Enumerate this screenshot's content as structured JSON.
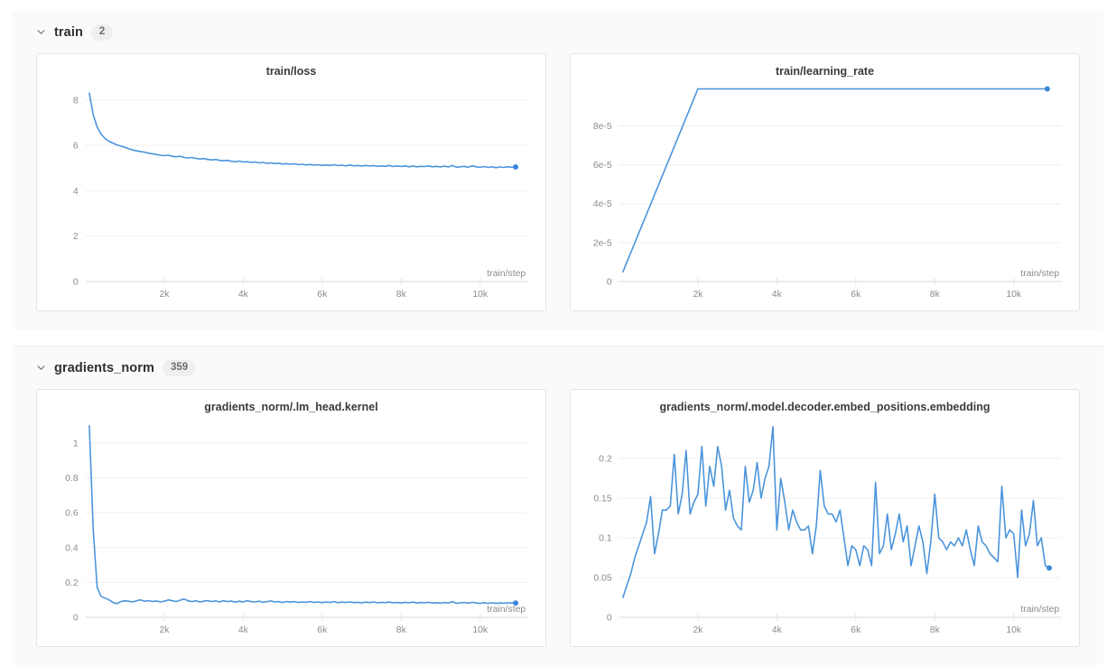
{
  "sections": [
    {
      "name": "train",
      "count": "2"
    },
    {
      "name": "gradients_norm",
      "count": "359"
    }
  ],
  "colors": {
    "line_blue": "#4a94db",
    "end_dot_blue": "#3b87d9",
    "grid_line": "#efefef",
    "axis_line": "#d9d9d9"
  },
  "chart_data": [
    {
      "type": "line",
      "title": "train/loss",
      "xlabel": "train/step",
      "line_color": "#4a94db",
      "end_dot": true,
      "grid": true,
      "legend": "none",
      "xlim": [
        0,
        11200
      ],
      "ylim": [
        0,
        8.75
      ],
      "xtick_values": [
        2000,
        4000,
        6000,
        8000,
        10000
      ],
      "xtick_labels": [
        "2k",
        "4k",
        "6k",
        "8k",
        "10k"
      ],
      "ytick_values": [
        0,
        2,
        4,
        6,
        8
      ],
      "ytick_labels": [
        "0",
        "2",
        "4",
        "6",
        "8"
      ],
      "x_start": 100,
      "x_step": 100,
      "y": [
        8.3,
        7.35,
        6.8,
        6.5,
        6.3,
        6.18,
        6.1,
        6.02,
        5.97,
        5.92,
        5.85,
        5.8,
        5.76,
        5.73,
        5.7,
        5.66,
        5.63,
        5.6,
        5.57,
        5.55,
        5.57,
        5.52,
        5.5,
        5.52,
        5.47,
        5.45,
        5.47,
        5.43,
        5.4,
        5.42,
        5.38,
        5.36,
        5.38,
        5.34,
        5.32,
        5.34,
        5.3,
        5.28,
        5.31,
        5.27,
        5.28,
        5.25,
        5.27,
        5.23,
        5.25,
        5.21,
        5.23,
        5.2,
        5.22,
        5.18,
        5.2,
        5.17,
        5.19,
        5.15,
        5.17,
        5.14,
        5.16,
        5.13,
        5.15,
        5.12,
        5.14,
        5.12,
        5.15,
        5.11,
        5.13,
        5.1,
        5.14,
        5.1,
        5.12,
        5.09,
        5.12,
        5.09,
        5.11,
        5.08,
        5.1,
        5.08,
        5.12,
        5.07,
        5.1,
        5.07,
        5.1,
        5.06,
        5.09,
        5.06,
        5.08,
        5.07,
        5.1,
        5.06,
        5.08,
        5.05,
        5.09,
        5.05,
        5.12,
        5.04,
        5.06,
        5.08,
        5.04,
        5.1,
        5.06,
        5.03,
        5.07,
        5.03,
        5.06,
        5.02,
        5.05,
        5.03,
        5.06,
        5.04,
        5.05
      ]
    },
    {
      "type": "line",
      "title": "train/learning_rate",
      "xlabel": "train/step",
      "line_color": "#4a94db",
      "end_dot": true,
      "grid": true,
      "legend": "none",
      "xlim": [
        0,
        11200
      ],
      "ylim": [
        0,
        0.000102
      ],
      "xtick_values": [
        2000,
        4000,
        6000,
        8000,
        10000
      ],
      "xtick_labels": [
        "2k",
        "4k",
        "6k",
        "8k",
        "10k"
      ],
      "ytick_values": [
        0,
        2e-05,
        4e-05,
        6e-05,
        8e-05
      ],
      "ytick_labels": [
        "0",
        "2e-5",
        "4e-5",
        "6e-5",
        "8e-5"
      ],
      "x": [
        100,
        2000,
        10850
      ],
      "y": [
        5e-06,
        9.9e-05,
        9.9e-05
      ]
    },
    {
      "type": "line",
      "title": "gradients_norm/.lm_head.kernel",
      "xlabel": "train/step",
      "line_color": "#4a94db",
      "end_dot": true,
      "grid": true,
      "legend": "none",
      "xlim": [
        0,
        11200
      ],
      "ylim": [
        0,
        1.14
      ],
      "xtick_values": [
        2000,
        4000,
        6000,
        8000,
        10000
      ],
      "xtick_labels": [
        "2k",
        "4k",
        "6k",
        "8k",
        "10k"
      ],
      "ytick_values": [
        0,
        0.2,
        0.4,
        0.6,
        0.8,
        1
      ],
      "ytick_labels": [
        "0",
        "0.2",
        "0.4",
        "0.6",
        "0.8",
        "1"
      ],
      "x_start": 100,
      "x_step": 100,
      "y": [
        1.1,
        0.5,
        0.17,
        0.12,
        0.11,
        0.1,
        0.085,
        0.078,
        0.09,
        0.095,
        0.092,
        0.088,
        0.095,
        0.1,
        0.092,
        0.096,
        0.09,
        0.094,
        0.088,
        0.092,
        0.1,
        0.095,
        0.09,
        0.098,
        0.105,
        0.095,
        0.09,
        0.095,
        0.088,
        0.092,
        0.096,
        0.09,
        0.094,
        0.088,
        0.095,
        0.09,
        0.093,
        0.087,
        0.092,
        0.088,
        0.095,
        0.09,
        0.088,
        0.092,
        0.086,
        0.09,
        0.094,
        0.088,
        0.09,
        0.085,
        0.09,
        0.087,
        0.09,
        0.085,
        0.088,
        0.086,
        0.09,
        0.085,
        0.088,
        0.084,
        0.088,
        0.085,
        0.09,
        0.084,
        0.087,
        0.085,
        0.088,
        0.084,
        0.086,
        0.083,
        0.087,
        0.084,
        0.088,
        0.083,
        0.086,
        0.084,
        0.087,
        0.083,
        0.085,
        0.082,
        0.086,
        0.083,
        0.087,
        0.082,
        0.085,
        0.083,
        0.086,
        0.082,
        0.084,
        0.081,
        0.085,
        0.082,
        0.09,
        0.08,
        0.083,
        0.085,
        0.081,
        0.086,
        0.082,
        0.08,
        0.084,
        0.08,
        0.083,
        0.08,
        0.082,
        0.081,
        0.083,
        0.082,
        0.082
      ]
    },
    {
      "type": "line",
      "title": "gradients_norm/.model.decoder.embed_positions.embedding",
      "xlabel": "train/step",
      "line_color": "#4a94db",
      "end_dot": true,
      "grid": true,
      "legend": "none",
      "xlim": [
        0,
        11200
      ],
      "ylim": [
        0,
        0.25
      ],
      "xtick_values": [
        2000,
        4000,
        6000,
        8000,
        10000
      ],
      "xtick_labels": [
        "2k",
        "4k",
        "6k",
        "8k",
        "10k"
      ],
      "ytick_values": [
        0,
        0.05,
        0.1,
        0.15,
        0.2
      ],
      "ytick_labels": [
        "0",
        "0.05",
        "0.1",
        "0.15",
        "0.2"
      ],
      "x_start": 100,
      "x_step": 100,
      "y": [
        0.025,
        0.04,
        0.055,
        0.075,
        0.09,
        0.105,
        0.12,
        0.152,
        0.08,
        0.105,
        0.135,
        0.135,
        0.14,
        0.205,
        0.13,
        0.155,
        0.21,
        0.13,
        0.145,
        0.155,
        0.215,
        0.14,
        0.19,
        0.165,
        0.215,
        0.19,
        0.135,
        0.16,
        0.125,
        0.115,
        0.11,
        0.19,
        0.145,
        0.16,
        0.195,
        0.15,
        0.175,
        0.19,
        0.24,
        0.11,
        0.175,
        0.145,
        0.11,
        0.135,
        0.12,
        0.11,
        0.11,
        0.115,
        0.08,
        0.115,
        0.185,
        0.14,
        0.13,
        0.13,
        0.12,
        0.135,
        0.1,
        0.065,
        0.09,
        0.085,
        0.065,
        0.09,
        0.085,
        0.065,
        0.17,
        0.08,
        0.09,
        0.13,
        0.085,
        0.105,
        0.13,
        0.095,
        0.115,
        0.065,
        0.09,
        0.115,
        0.095,
        0.055,
        0.095,
        0.155,
        0.1,
        0.095,
        0.085,
        0.095,
        0.09,
        0.1,
        0.09,
        0.11,
        0.085,
        0.065,
        0.115,
        0.095,
        0.09,
        0.08,
        0.075,
        0.07,
        0.165,
        0.1,
        0.11,
        0.105,
        0.05,
        0.135,
        0.09,
        0.105,
        0.147,
        0.09,
        0.1,
        0.065,
        0.062
      ]
    }
  ]
}
